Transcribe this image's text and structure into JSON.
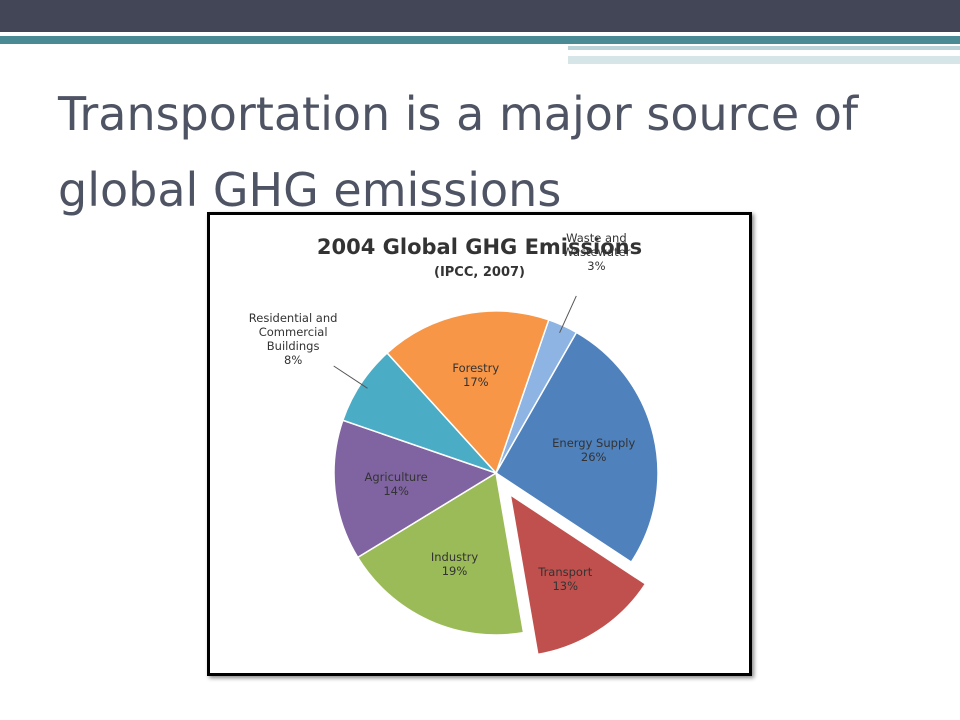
{
  "slide": {
    "title": "Transportation is a major source of global GHG emissions"
  },
  "chart_data": {
    "type": "pie",
    "title": "2004 Global GHG Emissions",
    "subtitle": "(IPCC, 2007)",
    "categories": [
      "Waste and Wastewater",
      "Energy Supply",
      "Transport",
      "Industry",
      "Agriculture",
      "Residential and Commercial Buildings",
      "Forestry"
    ],
    "values": [
      3,
      26,
      13,
      19,
      14,
      8,
      17
    ],
    "value_labels": [
      "3%",
      "26%",
      "13%",
      "19%",
      "14%",
      "8%",
      "17%"
    ],
    "colors": [
      "#8eb4e3",
      "#4f81bd",
      "#c0504d",
      "#9bbb59",
      "#8064a2",
      "#4bacc6",
      "#f79646"
    ],
    "explode": [
      false,
      false,
      true,
      false,
      false,
      false,
      false
    ]
  }
}
